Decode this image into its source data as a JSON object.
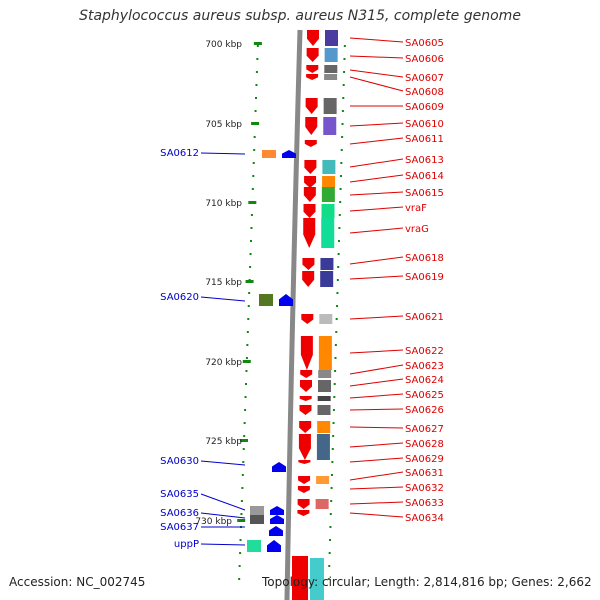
{
  "title": "Staphylococcus aureus subsp. aureus N315, complete genome",
  "footer": {
    "accession": "Accession: NC_002745",
    "topology": "Topology: circular; Length: 2,814,816 bp; Genes: 2,662"
  },
  "scale_labels": [
    "700 kbp",
    "705 kbp",
    "710 kbp",
    "715 kbp",
    "720 kbp",
    "725 kbp",
    "730 kbp"
  ],
  "colors": {
    "right_gene_label": "#dd0000",
    "left_gene_label": "#0000cc",
    "forward_strand": "#ee0000",
    "reverse_strand": "#0000ee",
    "tick": "#118811",
    "backbone": "#888888"
  },
  "left_genes": [
    "SA0612",
    "SA0620",
    "SA0630",
    "SA0635",
    "SA0636",
    "SA0637",
    "uppP"
  ],
  "right_genes": [
    "SA0605",
    "SA0606",
    "SA0607",
    "SA0608",
    "SA0609",
    "SA0610",
    "SA0611",
    "SA0613",
    "SA0614",
    "SA0615",
    "vraF",
    "vraG",
    "SA0618",
    "SA0619",
    "SA0621",
    "SA0622",
    "SA0623",
    "SA0624",
    "SA0625",
    "SA0626",
    "SA0627",
    "SA0628",
    "SA0629",
    "SA0631",
    "SA0632",
    "SA0633",
    "SA0634"
  ]
}
